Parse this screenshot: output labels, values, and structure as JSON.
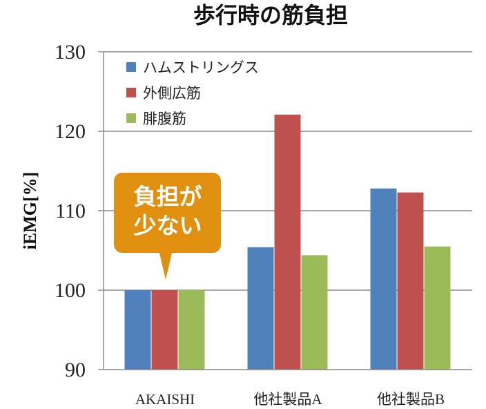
{
  "chart_data": {
    "type": "bar",
    "title": "歩行時の筋負担",
    "ylabel": "iEMG[%]",
    "xlabel": "",
    "ylim": [
      90,
      130
    ],
    "yticks": [
      90,
      100,
      110,
      120,
      130
    ],
    "grid": true,
    "legend_position": "top-left",
    "categories": [
      "AKAISHI",
      "他社製品A",
      "他社製品B"
    ],
    "series": [
      {
        "name": "ハムストリングス",
        "color": "#4f81bd",
        "values": [
          100,
          105.4,
          112.8
        ]
      },
      {
        "name": "外側広筋",
        "color": "#c0504d",
        "values": [
          100,
          122.1,
          112.3
        ]
      },
      {
        "name": "腓腹筋",
        "color": "#9bbb59",
        "values": [
          100,
          104.4,
          105.5
        ]
      }
    ],
    "annotation": {
      "lines": [
        "負担が",
        "少ない"
      ],
      "color": "#e0900e",
      "category": "AKAISHI"
    }
  }
}
